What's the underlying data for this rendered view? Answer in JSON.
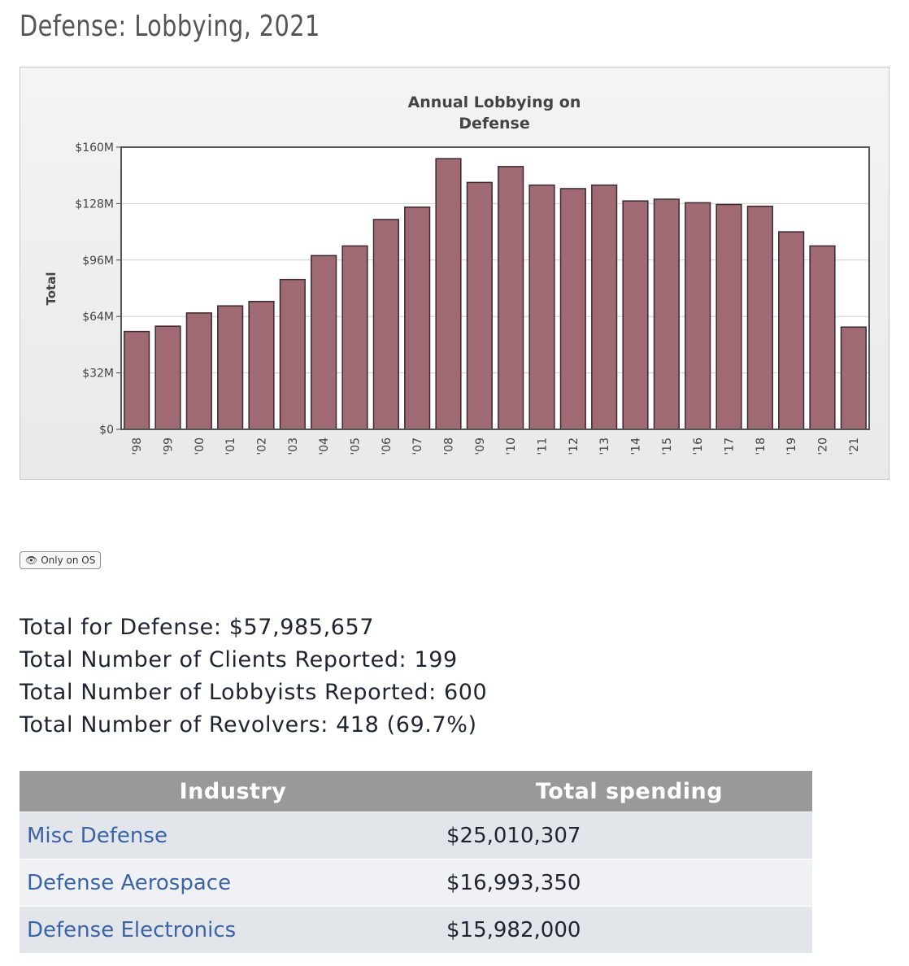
{
  "page": {
    "title": "Defense: Lobbying, 2021"
  },
  "chart_data": {
    "type": "bar",
    "title": "Annual Lobbying on Defense",
    "title_lines": [
      "Annual Lobbying on",
      "Defense"
    ],
    "ylabel": "Total",
    "xlabel": "",
    "ylim": [
      0,
      160
    ],
    "yticks": [
      0,
      32,
      64,
      96,
      128,
      160
    ],
    "ytick_labels": [
      "$0",
      "$32M",
      "$64M",
      "$96M",
      "$128M",
      "$160M"
    ],
    "grid": true,
    "bar_color": "#a06a74",
    "categories": [
      "'98",
      "'99",
      "'00",
      "'01",
      "'02",
      "'03",
      "'04",
      "'05",
      "'06",
      "'07",
      "'08",
      "'09",
      "'10",
      "'11",
      "'12",
      "'13",
      "'14",
      "'15",
      "'16",
      "'17",
      "'18",
      "'19",
      "'20",
      "'21"
    ],
    "values": [
      55.5,
      58.5,
      66,
      70,
      72.5,
      85,
      98.5,
      104,
      119,
      126,
      153.5,
      140,
      149,
      138.5,
      136.5,
      138.5,
      129.5,
      130.5,
      128.5,
      127.5,
      126.5,
      112,
      104,
      58
    ]
  },
  "badge": {
    "icon": "eye-icon",
    "label": "Only on OS"
  },
  "summary": {
    "total": "Total for Defense: $57,985,657",
    "clients": "Total Number of Clients Reported: 199",
    "lobbyists": "Total Number of Lobbyists Reported: 600",
    "revolvers": "Total Number of Revolvers: 418 (69.7%)"
  },
  "table": {
    "headers": [
      "Industry",
      "Total spending"
    ],
    "rows": [
      {
        "industry": "Misc Defense",
        "spending": "$25,010,307"
      },
      {
        "industry": "Defense Aerospace",
        "spending": "$16,993,350"
      },
      {
        "industry": "Defense Electronics",
        "spending": "$15,982,000"
      }
    ]
  },
  "colors": {
    "link": "#3b64a8",
    "header_bg": "#999999",
    "bar": "#a06a74"
  }
}
